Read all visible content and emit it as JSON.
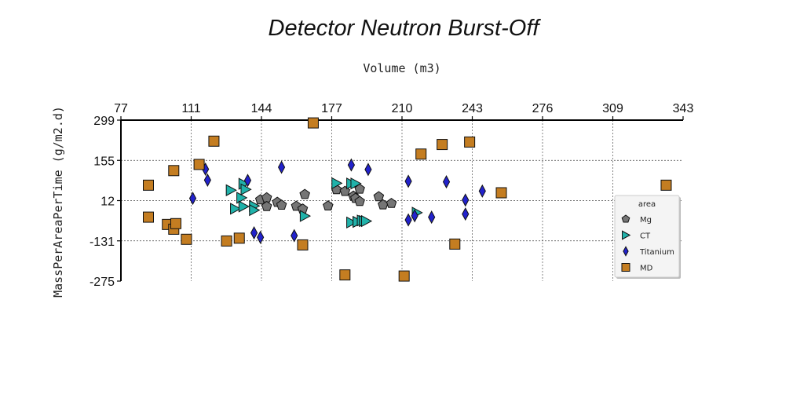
{
  "chart_data": {
    "type": "scatter",
    "title": "Detector Neutron Burst-Off",
    "xlabel": "Volume (m3)",
    "ylabel": "MassPerAreaPerTime (g/m2.d)",
    "xlim": [
      77,
      343
    ],
    "ylim": [
      -275,
      299
    ],
    "xticks": [
      "77",
      "111",
      "144",
      "177",
      "210",
      "243",
      "276",
      "309",
      "343"
    ],
    "yticks": [
      "299",
      "155",
      "12",
      "-131",
      "-275"
    ],
    "x_axis_position": "top",
    "grid": "dotted",
    "legend": {
      "title": "area",
      "position": "right"
    },
    "series": [
      {
        "name": "Mg",
        "marker": "pentagon",
        "color": "#757575",
        "points": [
          [
            143,
            15
          ],
          [
            146,
            22
          ],
          [
            151,
            6
          ],
          [
            153,
            -4
          ],
          [
            146,
            -9
          ],
          [
            160,
            -8
          ],
          [
            163,
            -18
          ],
          [
            164,
            34
          ],
          [
            175,
            -7
          ],
          [
            179,
            51
          ],
          [
            183,
            45
          ],
          [
            187,
            28
          ],
          [
            188,
            20
          ],
          [
            190,
            9
          ],
          [
            190,
            53
          ],
          [
            199,
            26
          ],
          [
            201,
            -3
          ],
          [
            205,
            2
          ]
        ]
      },
      {
        "name": "CT",
        "marker": "triangle-right",
        "color": "#20b2aa",
        "points": [
          [
            129,
            49
          ],
          [
            131,
            -17
          ],
          [
            134,
            22
          ],
          [
            135,
            72
          ],
          [
            136,
            52
          ],
          [
            135,
            -9
          ],
          [
            140,
            -7
          ],
          [
            140,
            -22
          ],
          [
            164,
            -43
          ],
          [
            179,
            74
          ],
          [
            186,
            73
          ],
          [
            188,
            73
          ],
          [
            186,
            -66
          ],
          [
            189,
            -64
          ],
          [
            189,
            -64
          ],
          [
            191,
            -59
          ],
          [
            192,
            -61
          ],
          [
            193,
            -61
          ],
          [
            217,
            -31
          ]
        ]
      },
      {
        "name": "Titanium",
        "marker": "diamond",
        "color": "#2222cc",
        "points": [
          [
            111,
            20
          ],
          [
            117,
            124
          ],
          [
            118,
            85
          ],
          [
            137,
            84
          ],
          [
            140,
            -103
          ],
          [
            143,
            -119
          ],
          [
            153,
            131
          ],
          [
            159,
            -113
          ],
          [
            186,
            139
          ],
          [
            194,
            123
          ],
          [
            213,
            81
          ],
          [
            213,
            -57
          ],
          [
            216,
            -42
          ],
          [
            224,
            -47
          ],
          [
            231,
            79
          ],
          [
            240,
            14
          ],
          [
            240,
            -36
          ],
          [
            248,
            46
          ]
        ]
      },
      {
        "name": "MD",
        "marker": "square",
        "color": "#c47d21",
        "points": [
          [
            90,
            67
          ],
          [
            90,
            -47
          ],
          [
            99,
            -73
          ],
          [
            102,
            -90
          ],
          [
            102,
            119
          ],
          [
            103,
            -70
          ],
          [
            108,
            -126
          ],
          [
            114,
            141
          ],
          [
            121,
            224
          ],
          [
            127,
            -132
          ],
          [
            133,
            -122
          ],
          [
            168,
            289
          ],
          [
            183,
            -253
          ],
          [
            211,
            -257
          ],
          [
            219,
            178
          ],
          [
            229,
            212
          ],
          [
            235,
            -143
          ],
          [
            242,
            221
          ],
          [
            257,
            40
          ],
          [
            335,
            67
          ],
          [
            163,
            -146
          ]
        ]
      }
    ]
  }
}
